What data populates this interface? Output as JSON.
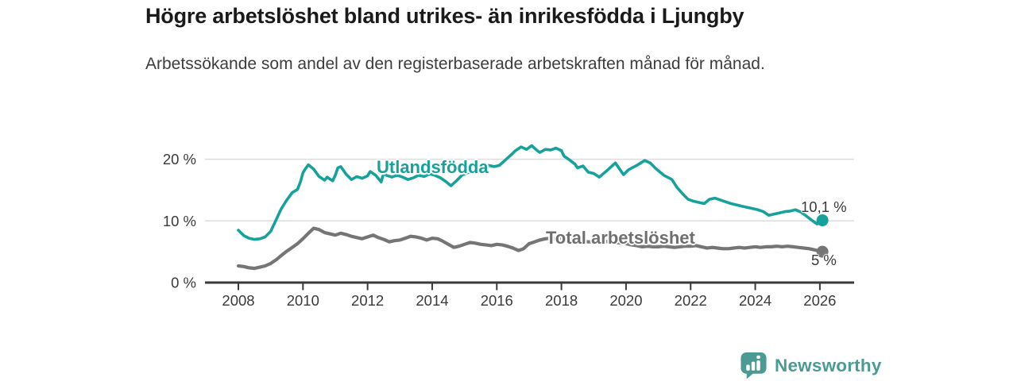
{
  "header": {
    "title": "Högre arbetslöshet bland utrikes- än inrikesfödda i Ljungby",
    "subtitle": "Arbetssökande som andel av den registerbaserade arbetskraften månad för månad."
  },
  "colors": {
    "foreign_born_line": "#16a29a",
    "total_line": "#757575",
    "axis": "#3a3a3a",
    "gridline": "#dcdcdc",
    "title_text": "#1a1a1a",
    "logo_teal": "#4b9a93"
  },
  "footer": {
    "brand": "Newsworthy"
  },
  "chart_data": {
    "type": "line",
    "title": "Högre arbetslöshet bland utrikes- än inrikesfödda i Ljungby",
    "subtitle": "Arbetssökande som andel av den registerbaserade arbetskraften månad för månad.",
    "grid": "horizontal",
    "legend_position": "inline-labels-on-lines",
    "x_axis": {
      "tick_values": [
        2008,
        2010,
        2012,
        2014,
        2016,
        2018,
        2020,
        2022,
        2024,
        2026
      ],
      "tick_labels": [
        "2008",
        "2010",
        "2012",
        "2014",
        "2016",
        "2018",
        "2020",
        "2022",
        "2024",
        "2026"
      ],
      "range": [
        2007,
        2027.1
      ]
    },
    "y_axis": {
      "tick_values": [
        0,
        10,
        20
      ],
      "tick_labels": [
        "0 %",
        "10 %",
        "20 %"
      ],
      "range": [
        0,
        24
      ],
      "unit": "%"
    },
    "series": [
      {
        "name": "Utlandsfödda",
        "color": "#16a29a",
        "end_value": 10.1,
        "end_label": "10,1 %",
        "points": [
          [
            2008.0,
            8.5
          ],
          [
            2008.17,
            7.6
          ],
          [
            2008.33,
            7.2
          ],
          [
            2008.5,
            7.0
          ],
          [
            2008.67,
            7.1
          ],
          [
            2008.83,
            7.4
          ],
          [
            2009.0,
            8.3
          ],
          [
            2009.17,
            10.2
          ],
          [
            2009.33,
            12.0
          ],
          [
            2009.5,
            13.4
          ],
          [
            2009.67,
            14.6
          ],
          [
            2009.83,
            15.1
          ],
          [
            2009.92,
            16.3
          ],
          [
            2010.0,
            17.8
          ],
          [
            2010.08,
            18.5
          ],
          [
            2010.17,
            19.1
          ],
          [
            2010.33,
            18.4
          ],
          [
            2010.5,
            17.2
          ],
          [
            2010.67,
            16.6
          ],
          [
            2010.75,
            17.1
          ],
          [
            2010.83,
            16.8
          ],
          [
            2010.92,
            16.5
          ],
          [
            2011.0,
            17.4
          ],
          [
            2011.08,
            18.6
          ],
          [
            2011.17,
            18.8
          ],
          [
            2011.33,
            17.6
          ],
          [
            2011.5,
            16.7
          ],
          [
            2011.67,
            17.2
          ],
          [
            2011.83,
            16.9
          ],
          [
            2012.0,
            17.3
          ],
          [
            2012.08,
            18.0
          ],
          [
            2012.25,
            17.4
          ],
          [
            2012.42,
            16.3
          ],
          [
            2012.5,
            17.8
          ],
          [
            2012.58,
            17.4
          ],
          [
            2012.75,
            17.1
          ],
          [
            2012.92,
            17.4
          ],
          [
            2013.08,
            17.1
          ],
          [
            2013.25,
            16.7
          ],
          [
            2013.42,
            17.0
          ],
          [
            2013.58,
            17.4
          ],
          [
            2013.75,
            17.2
          ],
          [
            2013.92,
            17.6
          ],
          [
            2014.08,
            17.4
          ],
          [
            2014.25,
            17.0
          ],
          [
            2014.42,
            16.4
          ],
          [
            2014.58,
            15.7
          ],
          [
            2014.75,
            16.5
          ],
          [
            2014.92,
            17.4
          ],
          [
            2015.08,
            17.8
          ],
          [
            2015.25,
            18.0
          ],
          [
            2015.42,
            18.3
          ],
          [
            2015.58,
            18.5
          ],
          [
            2015.75,
            19.0
          ],
          [
            2015.92,
            18.8
          ],
          [
            2016.08,
            19.0
          ],
          [
            2016.25,
            19.8
          ],
          [
            2016.42,
            20.6
          ],
          [
            2016.58,
            21.4
          ],
          [
            2016.75,
            22.0
          ],
          [
            2016.92,
            21.6
          ],
          [
            2017.08,
            22.2
          ],
          [
            2017.25,
            21.4
          ],
          [
            2017.33,
            21.1
          ],
          [
            2017.5,
            21.6
          ],
          [
            2017.67,
            21.5
          ],
          [
            2017.83,
            21.8
          ],
          [
            2018.0,
            21.4
          ],
          [
            2018.08,
            20.5
          ],
          [
            2018.25,
            19.9
          ],
          [
            2018.42,
            19.2
          ],
          [
            2018.5,
            18.6
          ],
          [
            2018.67,
            18.9
          ],
          [
            2018.83,
            17.9
          ],
          [
            2019.0,
            17.7
          ],
          [
            2019.17,
            17.1
          ],
          [
            2019.42,
            18.2
          ],
          [
            2019.67,
            19.4
          ],
          [
            2019.92,
            17.5
          ],
          [
            2020.08,
            18.3
          ],
          [
            2020.33,
            19.0
          ],
          [
            2020.58,
            19.8
          ],
          [
            2020.75,
            19.4
          ],
          [
            2020.92,
            18.5
          ],
          [
            2021.17,
            17.4
          ],
          [
            2021.42,
            16.7
          ],
          [
            2021.58,
            15.4
          ],
          [
            2021.75,
            14.4
          ],
          [
            2021.92,
            13.5
          ],
          [
            2022.08,
            13.2
          ],
          [
            2022.25,
            13.0
          ],
          [
            2022.42,
            12.8
          ],
          [
            2022.58,
            13.5
          ],
          [
            2022.75,
            13.7
          ],
          [
            2022.92,
            13.4
          ],
          [
            2023.08,
            13.1
          ],
          [
            2023.25,
            12.8
          ],
          [
            2023.42,
            12.6
          ],
          [
            2023.58,
            12.4
          ],
          [
            2023.75,
            12.2
          ],
          [
            2023.92,
            12.0
          ],
          [
            2024.08,
            11.8
          ],
          [
            2024.25,
            11.5
          ],
          [
            2024.42,
            10.9
          ],
          [
            2024.58,
            11.1
          ],
          [
            2024.75,
            11.3
          ],
          [
            2024.92,
            11.5
          ],
          [
            2025.08,
            11.6
          ],
          [
            2025.25,
            11.8
          ],
          [
            2025.42,
            11.4
          ],
          [
            2025.58,
            10.8
          ],
          [
            2025.75,
            10.1
          ],
          [
            2025.92,
            9.5
          ],
          [
            2026.0,
            9.8
          ],
          [
            2026.08,
            10.1
          ]
        ]
      },
      {
        "name": "Total arbetslöshet",
        "color": "#757575",
        "end_value": 5.0,
        "end_label": "5 %",
        "points": [
          [
            2008.0,
            2.7
          ],
          [
            2008.17,
            2.6
          ],
          [
            2008.33,
            2.4
          ],
          [
            2008.5,
            2.3
          ],
          [
            2008.67,
            2.5
          ],
          [
            2008.83,
            2.7
          ],
          [
            2009.0,
            3.1
          ],
          [
            2009.17,
            3.7
          ],
          [
            2009.33,
            4.4
          ],
          [
            2009.5,
            5.1
          ],
          [
            2009.67,
            5.7
          ],
          [
            2009.83,
            6.3
          ],
          [
            2010.0,
            7.1
          ],
          [
            2010.17,
            8.0
          ],
          [
            2010.33,
            8.8
          ],
          [
            2010.5,
            8.6
          ],
          [
            2010.67,
            8.1
          ],
          [
            2010.83,
            7.9
          ],
          [
            2011.0,
            7.7
          ],
          [
            2011.17,
            8.0
          ],
          [
            2011.33,
            7.8
          ],
          [
            2011.5,
            7.5
          ],
          [
            2011.67,
            7.3
          ],
          [
            2011.83,
            7.1
          ],
          [
            2012.0,
            7.4
          ],
          [
            2012.17,
            7.7
          ],
          [
            2012.33,
            7.3
          ],
          [
            2012.5,
            7.0
          ],
          [
            2012.67,
            6.6
          ],
          [
            2012.83,
            6.8
          ],
          [
            2013.0,
            6.9
          ],
          [
            2013.17,
            7.2
          ],
          [
            2013.33,
            7.5
          ],
          [
            2013.5,
            7.4
          ],
          [
            2013.67,
            7.2
          ],
          [
            2013.83,
            6.9
          ],
          [
            2014.0,
            7.2
          ],
          [
            2014.17,
            7.1
          ],
          [
            2014.33,
            6.7
          ],
          [
            2014.5,
            6.2
          ],
          [
            2014.67,
            5.7
          ],
          [
            2014.83,
            5.9
          ],
          [
            2015.0,
            6.2
          ],
          [
            2015.17,
            6.5
          ],
          [
            2015.33,
            6.4
          ],
          [
            2015.5,
            6.2
          ],
          [
            2015.67,
            6.1
          ],
          [
            2015.83,
            6.0
          ],
          [
            2016.0,
            6.2
          ],
          [
            2016.17,
            6.1
          ],
          [
            2016.33,
            5.9
          ],
          [
            2016.5,
            5.6
          ],
          [
            2016.67,
            5.2
          ],
          [
            2016.83,
            5.5
          ],
          [
            2017.0,
            6.3
          ],
          [
            2017.17,
            6.6
          ],
          [
            2017.33,
            6.9
          ],
          [
            2017.5,
            7.1
          ],
          [
            2017.67,
            7.2
          ],
          [
            2017.83,
            7.0
          ],
          [
            2018.0,
            7.2
          ],
          [
            2018.17,
            7.0
          ],
          [
            2018.33,
            6.9
          ],
          [
            2018.5,
            6.8
          ],
          [
            2018.67,
            6.7
          ],
          [
            2018.83,
            6.6
          ],
          [
            2019.0,
            6.6
          ],
          [
            2019.17,
            6.5
          ],
          [
            2019.33,
            6.6
          ],
          [
            2019.5,
            6.7
          ],
          [
            2019.67,
            6.5
          ],
          [
            2019.83,
            6.4
          ],
          [
            2020.0,
            6.3
          ],
          [
            2020.17,
            6.1
          ],
          [
            2020.33,
            6.0
          ],
          [
            2020.5,
            5.8
          ],
          [
            2020.67,
            5.9
          ],
          [
            2020.83,
            5.8
          ],
          [
            2021.0,
            5.8
          ],
          [
            2021.17,
            5.9
          ],
          [
            2021.33,
            5.8
          ],
          [
            2021.5,
            5.7
          ],
          [
            2021.67,
            5.8
          ],
          [
            2021.83,
            5.9
          ],
          [
            2022.0,
            5.9
          ],
          [
            2022.17,
            6.0
          ],
          [
            2022.33,
            5.8
          ],
          [
            2022.5,
            5.6
          ],
          [
            2022.67,
            5.7
          ],
          [
            2022.83,
            5.6
          ],
          [
            2023.0,
            5.5
          ],
          [
            2023.17,
            5.5
          ],
          [
            2023.33,
            5.6
          ],
          [
            2023.5,
            5.7
          ],
          [
            2023.67,
            5.6
          ],
          [
            2023.83,
            5.7
          ],
          [
            2024.0,
            5.8
          ],
          [
            2024.17,
            5.7
          ],
          [
            2024.33,
            5.8
          ],
          [
            2024.5,
            5.8
          ],
          [
            2024.67,
            5.9
          ],
          [
            2024.83,
            5.8
          ],
          [
            2025.0,
            5.9
          ],
          [
            2025.17,
            5.8
          ],
          [
            2025.33,
            5.7
          ],
          [
            2025.5,
            5.6
          ],
          [
            2025.67,
            5.5
          ],
          [
            2025.83,
            5.3
          ],
          [
            2026.0,
            5.1
          ],
          [
            2026.08,
            5.0
          ]
        ]
      }
    ]
  }
}
